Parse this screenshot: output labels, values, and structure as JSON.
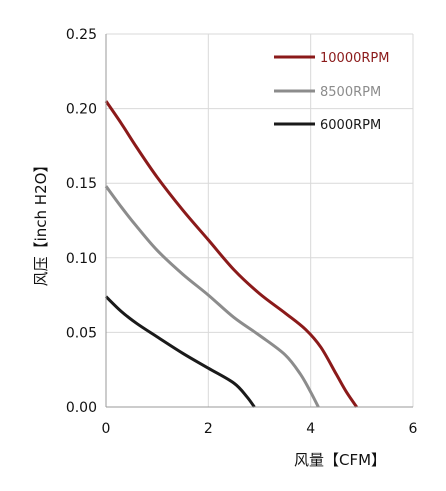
{
  "chart_data": {
    "type": "line",
    "title": "",
    "xlabel": "风量【CFM】",
    "ylabel": "风压【inch H2O】",
    "xlim": [
      0,
      6
    ],
    "ylim": [
      0,
      0.25
    ],
    "x_ticks": [
      "0",
      "2",
      "4",
      "6"
    ],
    "y_ticks": [
      "0.00",
      "0.05",
      "0.10",
      "0.15",
      "0.20",
      "0.25"
    ],
    "grid": true,
    "legend_position": "top-right",
    "series": [
      {
        "name": "10000RPM",
        "color": "#8b1a1a",
        "x": [
          0,
          0.3,
          0.6,
          1.0,
          1.5,
          2.0,
          2.5,
          3.0,
          3.5,
          3.9,
          4.2,
          4.5,
          4.7,
          4.9
        ],
        "y": [
          0.205,
          0.19,
          0.174,
          0.154,
          0.132,
          0.112,
          0.092,
          0.076,
          0.063,
          0.052,
          0.04,
          0.022,
          0.01,
          0.0
        ]
      },
      {
        "name": "8500RPM",
        "color": "#8c8c8c",
        "x": [
          0,
          0.3,
          0.6,
          1.0,
          1.5,
          2.0,
          2.5,
          3.0,
          3.5,
          3.8,
          4.0,
          4.15
        ],
        "y": [
          0.148,
          0.134,
          0.121,
          0.105,
          0.089,
          0.075,
          0.06,
          0.048,
          0.035,
          0.022,
          0.01,
          0.0
        ]
      },
      {
        "name": "6000RPM",
        "color": "#1a1a1a",
        "x": [
          0,
          0.3,
          0.6,
          1.0,
          1.5,
          2.0,
          2.5,
          2.75,
          2.9
        ],
        "y": [
          0.074,
          0.064,
          0.056,
          0.047,
          0.036,
          0.026,
          0.016,
          0.007,
          0.0
        ]
      }
    ]
  }
}
